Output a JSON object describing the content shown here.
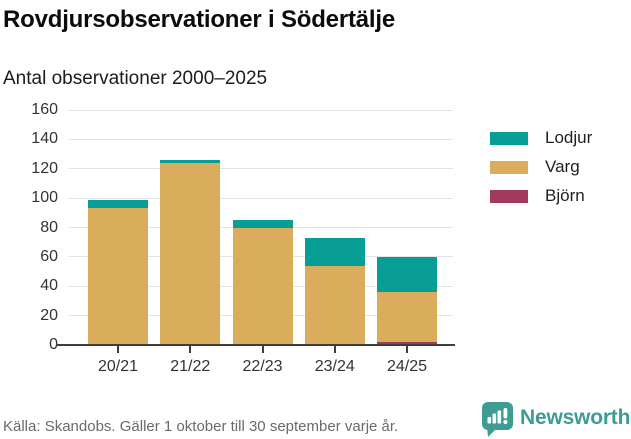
{
  "header": {
    "title": "Rovdjursobservationer i Södertälje",
    "subtitle": "Antal observationer 2000–2025"
  },
  "chart_data": {
    "type": "bar",
    "stacked": true,
    "title": "Rovdjursobservationer i Södertälje",
    "subtitle": "Antal observationer 2000–2025",
    "categories": [
      "20/21",
      "21/22",
      "22/23",
      "23/24",
      "24/25"
    ],
    "series": [
      {
        "name": "Lodjur",
        "color": "#089e96",
        "values": [
          6,
          2,
          5,
          19,
          24
        ]
      },
      {
        "name": "Varg",
        "color": "#d9ad5c",
        "values": [
          93,
          124,
          80,
          54,
          34
        ]
      },
      {
        "name": "Björn",
        "color": "#a23a5c",
        "values": [
          0,
          0,
          0,
          0,
          2
        ]
      }
    ],
    "stack_order_bottom_to_top": [
      "Björn",
      "Varg",
      "Lodjur"
    ],
    "totals": [
      99,
      126,
      85,
      73,
      60
    ],
    "xlabel": "",
    "ylabel": "",
    "ylim": [
      0,
      160
    ],
    "ytick_step": 20,
    "yticks": [
      0,
      20,
      40,
      60,
      80,
      100,
      120,
      140,
      160
    ],
    "grid": "horizontal",
    "legend_position": "right",
    "legend": [
      {
        "label": "Lodjur",
        "color": "#089e96"
      },
      {
        "label": "Varg",
        "color": "#d9ad5c"
      },
      {
        "label": "Björn",
        "color": "#a23a5c"
      }
    ]
  },
  "footer": {
    "source": "Källa: Skandobs. Gäller 1 oktober till 30 september varje år.",
    "brand": "Newsworthy",
    "brand_icon": "newsworthy-bar-chart-bubble-icon",
    "brand_color": "#3d9c94"
  }
}
